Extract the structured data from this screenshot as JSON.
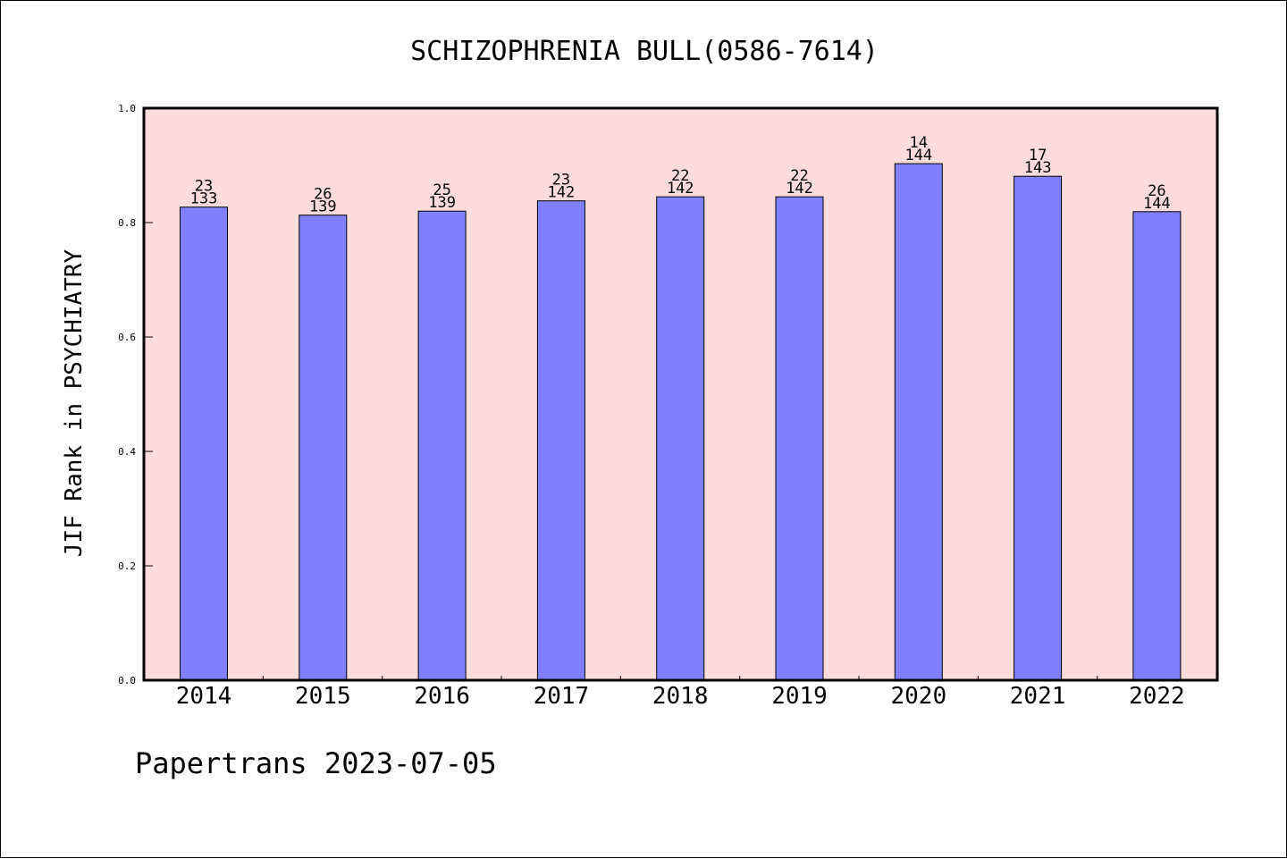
{
  "footer_text": "Papertrans 2023-07-05",
  "chart_data": {
    "type": "bar",
    "title": "SCHIZOPHRENIA BULL(0586-7614)",
    "xlabel": "",
    "ylabel": "JIF Rank in PSYCHIATRY",
    "ylim": [
      0,
      1.0
    ],
    "yticks": [
      "0.0",
      "0.2",
      "0.4",
      "0.6",
      "0.8",
      "1.0"
    ],
    "grid": false,
    "categories": [
      "2014",
      "2015",
      "2016",
      "2017",
      "2018",
      "2019",
      "2020",
      "2021",
      "2022"
    ],
    "values": [
      0.827,
      0.813,
      0.82,
      0.838,
      0.845,
      0.845,
      0.903,
      0.881,
      0.819
    ],
    "rank": [
      "23",
      "26",
      "25",
      "23",
      "22",
      "22",
      "14",
      "17",
      "26"
    ],
    "total": [
      "133",
      "139",
      "139",
      "142",
      "142",
      "142",
      "144",
      "143",
      "144"
    ],
    "colors": {
      "plot_background": "#ffdcdc",
      "bar": "#8080ff",
      "bar_edge": "#000000"
    }
  }
}
